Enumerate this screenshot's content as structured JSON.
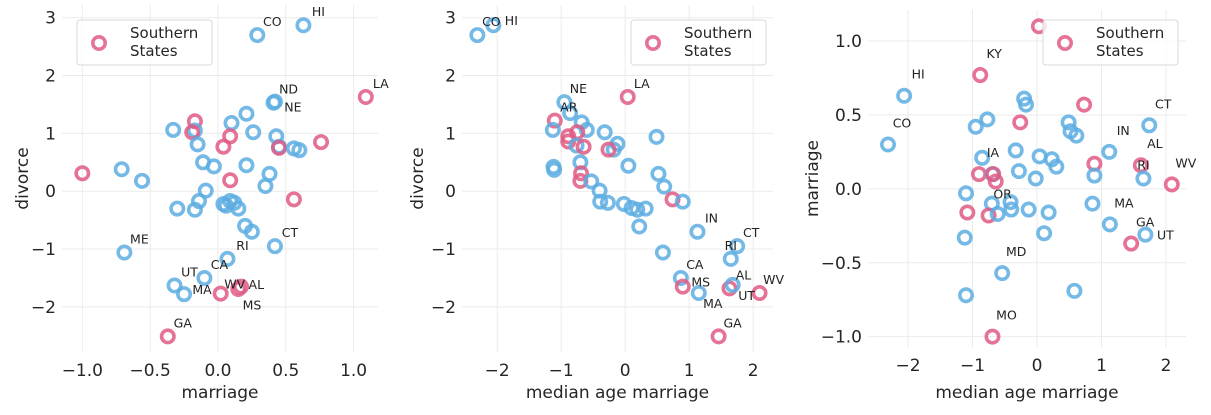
{
  "colors": {
    "other": "#5dade2",
    "southern": "#e05a84",
    "grid": "#ebebeb",
    "legend_border": "#d9d9d9"
  },
  "chart_data": [
    {
      "type": "scatter",
      "xlabel": "marriage",
      "ylabel": "divorce",
      "xlim": [
        -1.15,
        1.18
      ],
      "ylim": [
        -2.78,
        3.22
      ],
      "xticks": [
        -1.0,
        -0.5,
        0.0,
        0.5,
        1.0
      ],
      "xtick_labels": [
        "−1.0",
        "−0.5",
        "0.0",
        "0.5",
        "1.0"
      ],
      "yticks": [
        -2,
        -1,
        0,
        1,
        2,
        3
      ],
      "ytick_labels": [
        "−2",
        "−1",
        "0",
        "1",
        "2",
        "3"
      ],
      "grid": true,
      "legend": {
        "label_line1": "Southern",
        "label_line2": "States",
        "placement": "upper-left"
      },
      "points_format": [
        "x",
        "y",
        "southern",
        "label"
      ],
      "points": [
        [
          0.63,
          2.87,
          0,
          "HI"
        ],
        [
          0.29,
          2.7,
          0,
          "CO"
        ],
        [
          1.09,
          1.63,
          1,
          "LA"
        ],
        [
          0.41,
          1.53,
          0,
          "ND"
        ],
        [
          0.42,
          1.55,
          0,
          "NE"
        ],
        [
          0.21,
          1.34,
          0,
          ""
        ],
        [
          -0.17,
          1.21,
          1,
          ""
        ],
        [
          0.1,
          1.18,
          0,
          ""
        ],
        [
          -0.33,
          1.06,
          0,
          ""
        ],
        [
          -0.17,
          1.05,
          0,
          ""
        ],
        [
          -0.19,
          1.02,
          1,
          ""
        ],
        [
          0.26,
          1.02,
          0,
          ""
        ],
        [
          0.09,
          0.95,
          1,
          ""
        ],
        [
          0.43,
          0.95,
          0,
          ""
        ],
        [
          -0.15,
          0.81,
          0,
          ""
        ],
        [
          0.76,
          0.85,
          1,
          ""
        ],
        [
          0.04,
          0.77,
          1,
          ""
        ],
        [
          0.45,
          0.77,
          0,
          ""
        ],
        [
          0.45,
          0.75,
          1,
          ""
        ],
        [
          0.56,
          0.74,
          0,
          ""
        ],
        [
          0.6,
          0.71,
          0,
          ""
        ],
        [
          -0.11,
          0.5,
          0,
          ""
        ],
        [
          -0.03,
          0.43,
          0,
          ""
        ],
        [
          0.21,
          0.45,
          0,
          ""
        ],
        [
          -1.0,
          0.31,
          1,
          ""
        ],
        [
          -0.71,
          0.38,
          0,
          ""
        ],
        [
          0.38,
          0.3,
          0,
          ""
        ],
        [
          -0.56,
          0.18,
          0,
          ""
        ],
        [
          0.09,
          0.19,
          1,
          ""
        ],
        [
          0.35,
          0.09,
          0,
          ""
        ],
        [
          -0.09,
          0.01,
          0,
          ""
        ],
        [
          0.56,
          -0.14,
          1,
          ""
        ],
        [
          -0.14,
          -0.17,
          0,
          ""
        ],
        [
          -0.3,
          -0.3,
          0,
          ""
        ],
        [
          -0.17,
          -0.32,
          0,
          ""
        ],
        [
          0.06,
          -0.25,
          0,
          ""
        ],
        [
          0.09,
          -0.17,
          0,
          ""
        ],
        [
          0.12,
          -0.2,
          0,
          ""
        ],
        [
          0.15,
          -0.3,
          0,
          ""
        ],
        [
          0.04,
          -0.22,
          0,
          ""
        ],
        [
          0.2,
          -0.6,
          0,
          ""
        ],
        [
          0.25,
          -0.7,
          0,
          ""
        ],
        [
          0.42,
          -0.95,
          0,
          "CT"
        ],
        [
          -0.69,
          -1.06,
          0,
          "ME"
        ],
        [
          0.07,
          -1.17,
          0,
          "RI"
        ],
        [
          -0.1,
          -1.5,
          0,
          "CA"
        ],
        [
          -0.32,
          -1.63,
          0,
          "UT"
        ],
        [
          -0.25,
          -1.78,
          0,
          "MA"
        ],
        [
          0.02,
          -1.77,
          1,
          "WV"
        ],
        [
          0.15,
          -1.69,
          1,
          "AL"
        ],
        [
          0.17,
          -1.65,
          1,
          "MS"
        ],
        [
          -0.37,
          -2.51,
          1,
          "GA"
        ]
      ]
    },
    {
      "type": "scatter",
      "xlabel": "median age marriage",
      "ylabel": "divorce",
      "xlim": [
        -2.55,
        2.31
      ],
      "ylim": [
        -2.78,
        3.22
      ],
      "xticks": [
        -2,
        -1,
        0,
        1,
        2
      ],
      "xtick_labels": [
        "−2",
        "−1",
        "0",
        "1",
        "2"
      ],
      "yticks": [
        -2,
        -1,
        0,
        1,
        2,
        3
      ],
      "ytick_labels": [
        "−2",
        "−1",
        "0",
        "1",
        "2",
        "3"
      ],
      "grid": true,
      "legend": {
        "label_line1": "Southern",
        "label_line2": "States",
        "placement": "upper-right"
      },
      "points_format": [
        "x",
        "y",
        "southern",
        "label"
      ],
      "points": [
        [
          -2.31,
          2.7,
          0,
          "CO"
        ],
        [
          -2.06,
          2.87,
          0,
          "HI"
        ],
        [
          0.04,
          1.63,
          1,
          "LA"
        ],
        [
          -0.95,
          1.54,
          0,
          "NE"
        ],
        [
          -0.86,
          1.35,
          0,
          ""
        ],
        [
          -1.1,
          1.22,
          1,
          "AR"
        ],
        [
          -0.68,
          1.19,
          0,
          ""
        ],
        [
          -1.13,
          1.06,
          0,
          ""
        ],
        [
          -0.6,
          1.06,
          0,
          ""
        ],
        [
          -0.75,
          1.02,
          1,
          ""
        ],
        [
          -0.32,
          1.02,
          0,
          ""
        ],
        [
          -0.89,
          0.95,
          1,
          ""
        ],
        [
          0.49,
          0.94,
          0,
          ""
        ],
        [
          -0.89,
          0.86,
          1,
          ""
        ],
        [
          -0.76,
          0.79,
          0,
          ""
        ],
        [
          -0.65,
          0.77,
          1,
          ""
        ],
        [
          -0.12,
          0.82,
          0,
          ""
        ],
        [
          -0.18,
          0.72,
          0,
          ""
        ],
        [
          -0.26,
          0.72,
          1,
          ""
        ],
        [
          -0.7,
          0.5,
          0,
          ""
        ],
        [
          0.05,
          0.44,
          0,
          ""
        ],
        [
          -1.12,
          0.42,
          0,
          ""
        ],
        [
          -1.11,
          0.37,
          0,
          ""
        ],
        [
          -0.69,
          0.31,
          1,
          ""
        ],
        [
          -0.7,
          0.18,
          1,
          ""
        ],
        [
          -0.53,
          0.17,
          0,
          ""
        ],
        [
          0.52,
          0.3,
          0,
          ""
        ],
        [
          0.61,
          0.08,
          0,
          ""
        ],
        [
          -0.4,
          0.01,
          0,
          ""
        ],
        [
          0.74,
          -0.14,
          1,
          ""
        ],
        [
          0.9,
          -0.18,
          0,
          ""
        ],
        [
          -0.39,
          -0.18,
          0,
          ""
        ],
        [
          -0.27,
          -0.2,
          0,
          ""
        ],
        [
          -0.02,
          -0.22,
          0,
          ""
        ],
        [
          0.1,
          -0.29,
          0,
          ""
        ],
        [
          0.19,
          -0.32,
          0,
          ""
        ],
        [
          0.32,
          -0.3,
          0,
          ""
        ],
        [
          0.22,
          -0.61,
          0,
          ""
        ],
        [
          1.13,
          -0.7,
          0,
          "IN"
        ],
        [
          0.59,
          -1.06,
          0,
          ""
        ],
        [
          1.75,
          -0.95,
          0,
          "CT"
        ],
        [
          1.65,
          -1.17,
          0,
          "RI"
        ],
        [
          0.87,
          -1.5,
          0,
          "CA"
        ],
        [
          0.9,
          -1.65,
          1,
          "MS"
        ],
        [
          1.15,
          -1.76,
          0,
          "MA"
        ],
        [
          1.63,
          -1.68,
          1,
          "AL"
        ],
        [
          1.68,
          -1.62,
          0,
          "UT"
        ],
        [
          2.1,
          -1.76,
          1,
          "WV"
        ],
        [
          1.46,
          -2.51,
          1,
          "GA"
        ]
      ]
    },
    {
      "type": "scatter",
      "xlabel": "median age marriage",
      "ylabel": "marriage",
      "xlim": [
        -2.62,
        2.31
      ],
      "ylim": [
        -1.07,
        1.21
      ],
      "xticks": [
        -2,
        -1,
        0,
        1,
        2
      ],
      "xtick_labels": [
        "−2",
        "−1",
        "0",
        "1",
        "2"
      ],
      "yticks": [
        -1.0,
        -0.5,
        0.0,
        0.5,
        1.0
      ],
      "ytick_labels": [
        "−1.0",
        "−0.5",
        "0.0",
        "0.5",
        "1.0"
      ],
      "grid": true,
      "legend": {
        "label_line1": "Southern",
        "label_line2": "States",
        "placement": "upper-right"
      },
      "points_format": [
        "x",
        "y",
        "southern",
        "label"
      ],
      "points": [
        [
          0.03,
          1.1,
          1,
          ""
        ],
        [
          -0.88,
          0.77,
          1,
          "KY"
        ],
        [
          -2.06,
          0.63,
          0,
          "HI"
        ],
        [
          -2.31,
          0.3,
          0,
          "CO"
        ],
        [
          -0.2,
          0.61,
          0,
          ""
        ],
        [
          -0.17,
          0.57,
          0,
          ""
        ],
        [
          0.73,
          0.57,
          1,
          ""
        ],
        [
          -0.77,
          0.47,
          0,
          ""
        ],
        [
          -0.95,
          0.42,
          0,
          ""
        ],
        [
          -0.26,
          0.45,
          1,
          ""
        ],
        [
          0.49,
          0.45,
          0,
          ""
        ],
        [
          0.52,
          0.39,
          0,
          ""
        ],
        [
          0.61,
          0.36,
          0,
          ""
        ],
        [
          1.74,
          0.43,
          0,
          "CT"
        ],
        [
          -0.33,
          0.26,
          0,
          ""
        ],
        [
          1.12,
          0.25,
          0,
          "IN"
        ],
        [
          -0.85,
          0.21,
          0,
          ""
        ],
        [
          0.04,
          0.22,
          0,
          ""
        ],
        [
          0.23,
          0.2,
          0,
          ""
        ],
        [
          0.3,
          0.15,
          0,
          ""
        ],
        [
          0.89,
          0.17,
          1,
          ""
        ],
        [
          1.61,
          0.16,
          1,
          "AL"
        ],
        [
          1.65,
          0.07,
          0,
          "RI"
        ],
        [
          2.09,
          0.03,
          1,
          "WV"
        ],
        [
          -0.28,
          0.12,
          0,
          ""
        ],
        [
          -0.9,
          0.1,
          1,
          "IA"
        ],
        [
          -0.69,
          0.1,
          0,
          ""
        ],
        [
          -0.68,
          0.1,
          1,
          ""
        ],
        [
          -0.64,
          0.05,
          1,
          ""
        ],
        [
          -0.02,
          0.07,
          0,
          ""
        ],
        [
          0.89,
          0.09,
          0,
          ""
        ],
        [
          -1.1,
          -0.03,
          0,
          ""
        ],
        [
          -0.7,
          -0.1,
          0,
          ""
        ],
        [
          -0.41,
          -0.09,
          0,
          ""
        ],
        [
          -0.4,
          -0.14,
          0,
          ""
        ],
        [
          -0.13,
          -0.14,
          0,
          ""
        ],
        [
          0.18,
          -0.16,
          0,
          ""
        ],
        [
          0.86,
          -0.1,
          0,
          ""
        ],
        [
          -1.08,
          -0.16,
          1,
          ""
        ],
        [
          -0.75,
          -0.18,
          1,
          "OR"
        ],
        [
          -0.61,
          -0.17,
          0,
          ""
        ],
        [
          1.13,
          -0.24,
          0,
          "MA"
        ],
        [
          1.46,
          -0.37,
          1,
          "GA"
        ],
        [
          1.68,
          -0.31,
          0,
          "UT"
        ],
        [
          -1.12,
          -0.33,
          0,
          ""
        ],
        [
          0.11,
          -0.3,
          0,
          ""
        ],
        [
          -0.54,
          -0.57,
          0,
          "MD"
        ],
        [
          -1.1,
          -0.72,
          0,
          ""
        ],
        [
          0.58,
          -0.69,
          0,
          ""
        ],
        [
          -0.69,
          -1.0,
          1,
          "MO"
        ]
      ]
    }
  ]
}
